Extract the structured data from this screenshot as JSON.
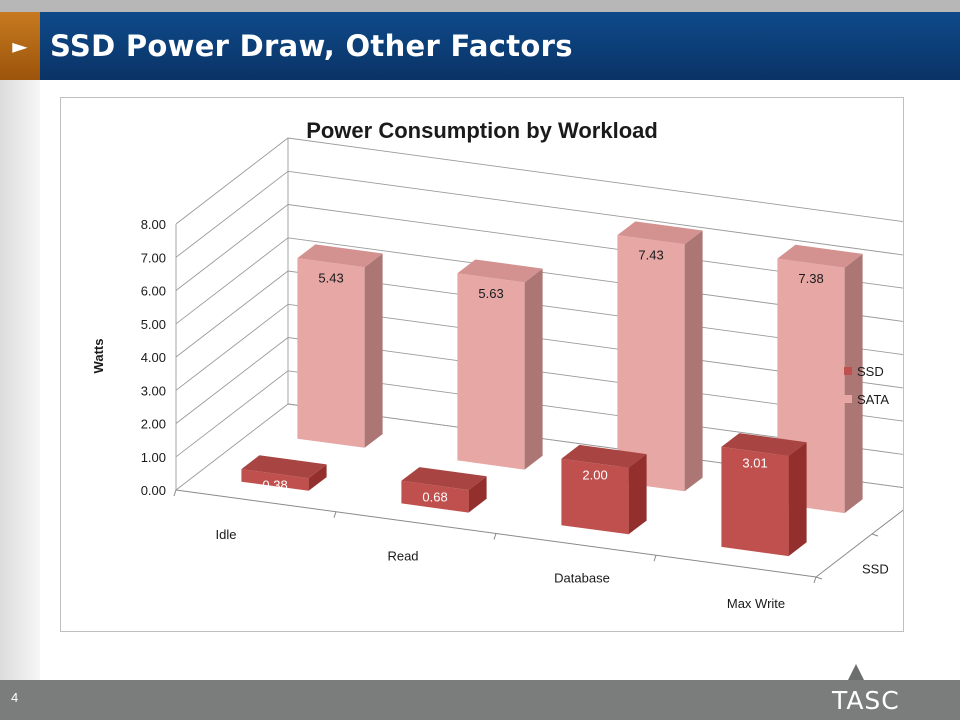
{
  "slide": {
    "title": "SSD Power Draw, Other Factors",
    "arrow_glyph": "►",
    "page_number": "4",
    "logo_text": "TASC"
  },
  "colors": {
    "ssd_front": "#c0504d",
    "ssd_side": "#93302e",
    "ssd_top": "#a84542",
    "sata_front": "#e6a7a5",
    "sata_side": "#ab7674",
    "sata_top": "#d39290",
    "title_bar": "#0a3366",
    "accent": "#b86a18"
  },
  "chart_data": {
    "type": "bar",
    "subtype": "3d-clustered-bar",
    "title": "Power Consumption by Workload",
    "ylabel": "Watts",
    "ylim": [
      0,
      8
    ],
    "yticks": [
      "0.00",
      "1.00",
      "2.00",
      "3.00",
      "4.00",
      "5.00",
      "6.00",
      "7.00",
      "8.00"
    ],
    "categories": [
      "Idle",
      "Read",
      "Database",
      "Max Write"
    ],
    "depth_labels": [
      "SATA",
      "SSD"
    ],
    "legend_position": "right",
    "grid": true,
    "series": [
      {
        "name": "SSD",
        "values": [
          0.38,
          0.68,
          2.0,
          3.01
        ],
        "labels": [
          "0.38",
          "0.68",
          "2.00",
          "3.01"
        ]
      },
      {
        "name": "SATA",
        "values": [
          5.43,
          5.63,
          7.43,
          7.38
        ],
        "labels": [
          "5.43",
          "5.63",
          "7.43",
          "7.38"
        ]
      }
    ]
  }
}
